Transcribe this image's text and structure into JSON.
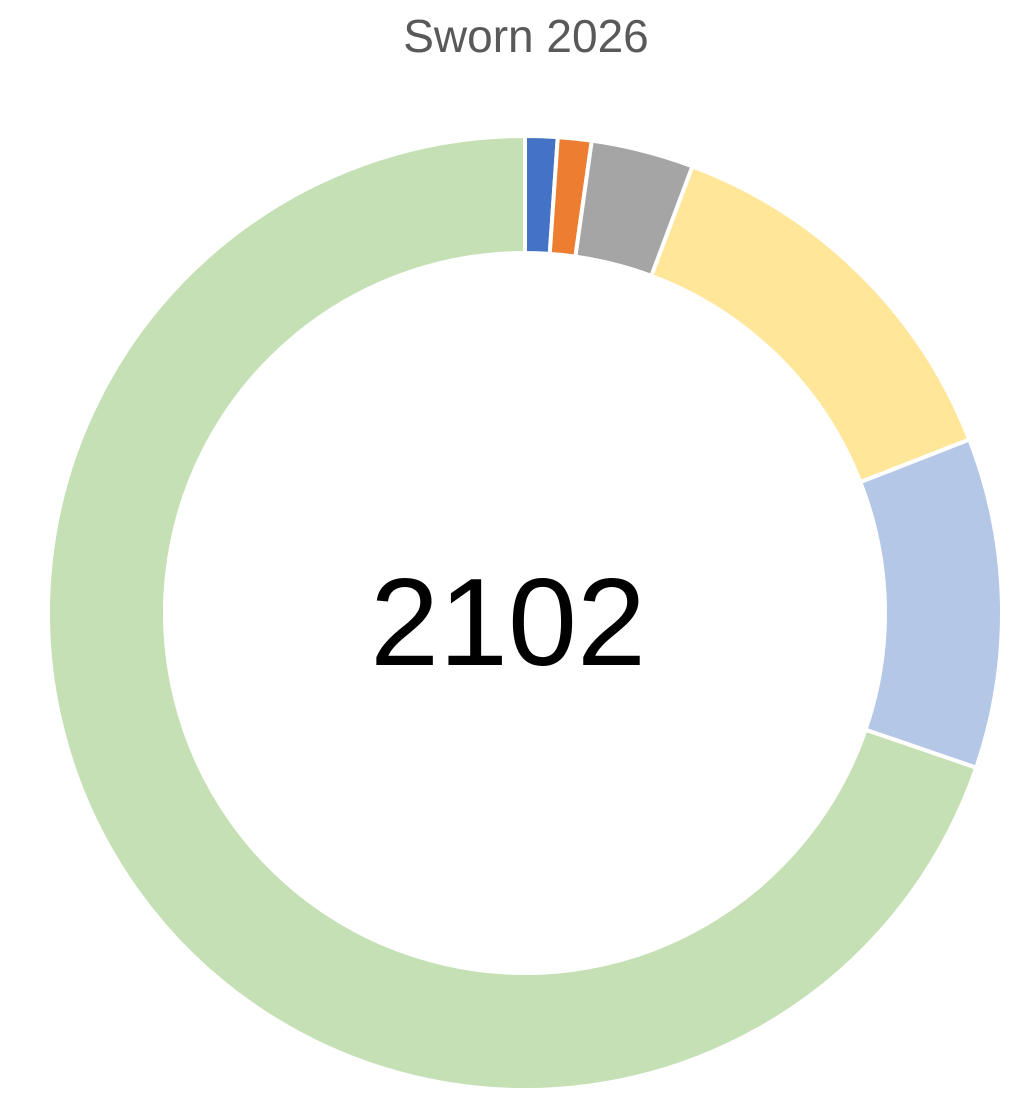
{
  "chart_data": {
    "type": "donut",
    "title": "Sworn 2026",
    "center_label": "2102",
    "values": [
      23,
      24,
      73,
      281,
      235,
      1466
    ],
    "colors": [
      "#4472c4",
      "#ed7d31",
      "#a5a5a5",
      "#ffe699",
      "#b4c7e7",
      "#c5e0b4"
    ]
  }
}
